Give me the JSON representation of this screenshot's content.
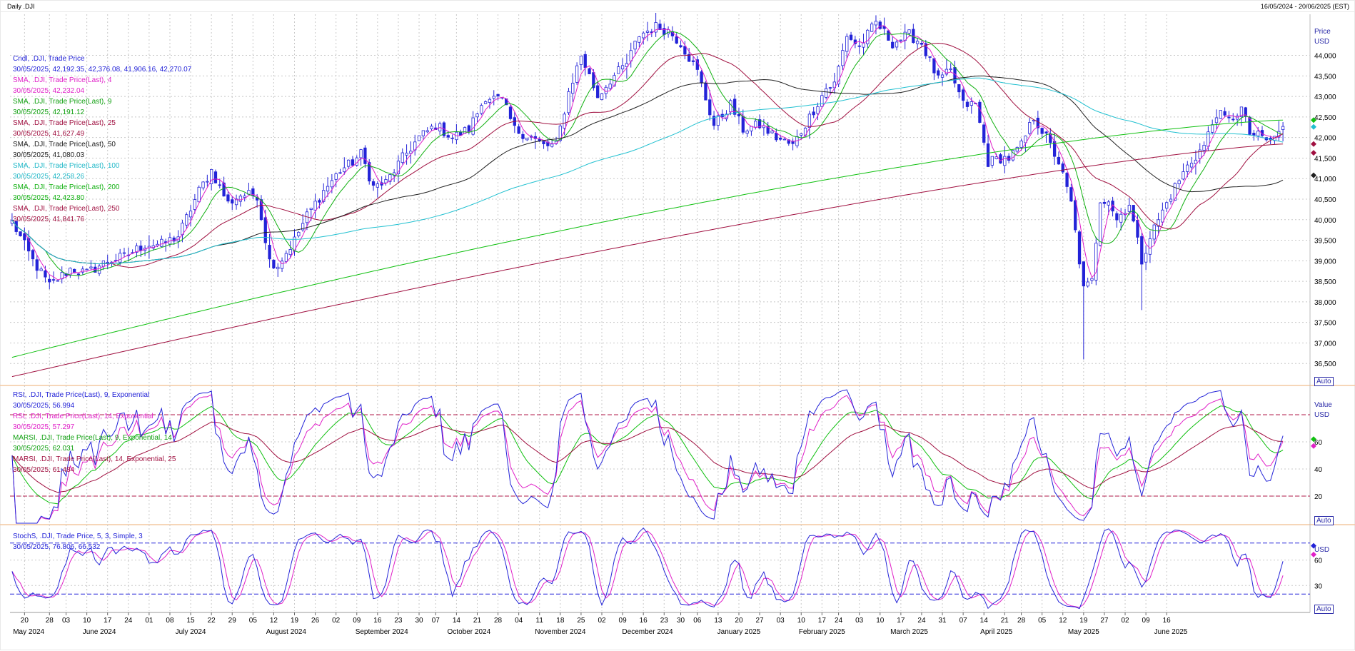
{
  "header": {
    "left": "Daily .DJI",
    "right": "16/05/2024 - 20/06/2025 (EST)"
  },
  "colors": {
    "up": "#ffffff",
    "down": "#2323d8",
    "outline": "#2323d8",
    "sma4": "#e020c8",
    "sma9": "#10b010",
    "sma25": "#a01040",
    "sma50": "#202020",
    "sma100": "#20c0d0",
    "sma200": "#10c010",
    "sma250": "#a01040",
    "rsi9": "#2323d8",
    "rsi14": "#e020c8",
    "marsi9": "#10c010",
    "marsi14": "#a01040",
    "stochK": "#2323d8",
    "stochD": "#e020c8",
    "grid": "#c8c8c8",
    "axis": "#2a2aa8",
    "divider": "#f4c8a0"
  },
  "legend_price": [
    {
      "text": "Cndl, .DJI, Trade Price",
      "color": "#2323d8"
    },
    {
      "text": "30/05/2025, 42,192.35, 42,376.08, 41,906.16, 42,270.07",
      "color": "#2323d8"
    },
    {
      "text": "SMA, .DJI, Trade Price(Last), 4",
      "color": "#e020c8"
    },
    {
      "text": "30/05/2025, 42,232.04",
      "color": "#e020c8"
    },
    {
      "text": "SMA, .DJI, Trade Price(Last), 9",
      "color": "#10a010"
    },
    {
      "text": "30/05/2025, 42,191.12",
      "color": "#10a010"
    },
    {
      "text": "SMA, .DJI, Trade Price(Last), 25",
      "color": "#a01040"
    },
    {
      "text": "30/05/2025, 41,627.49",
      "color": "#a01040"
    },
    {
      "text": "SMA, .DJI, Trade Price(Last), 50",
      "color": "#202020"
    },
    {
      "text": "30/05/2025, 41,080.03",
      "color": "#202020"
    },
    {
      "text": "SMA, .DJI, Trade Price(Last), 100",
      "color": "#20b8c8"
    },
    {
      "text": "30/05/2025, 42,258.26",
      "color": "#20b8c8"
    },
    {
      "text": "SMA, .DJI, Trade Price(Last), 200",
      "color": "#10b010"
    },
    {
      "text": "30/05/2025, 42,423.80",
      "color": "#10b010"
    },
    {
      "text": "SMA, .DJI, Trade Price(Last), 250",
      "color": "#a01040"
    },
    {
      "text": "30/05/2025, 41,841.76",
      "color": "#a01040"
    }
  ],
  "legend_rsi": [
    {
      "text": "RSI, .DJI, Trade Price(Last), 9, Exponential",
      "color": "#2323d8"
    },
    {
      "text": "30/05/2025, 56.994",
      "color": "#2323d8"
    },
    {
      "text": "RSI, .DJI, Trade Price(Last), 14, Exponential",
      "color": "#e020c8"
    },
    {
      "text": "30/05/2025, 57.297",
      "color": "#e020c8"
    },
    {
      "text": "MARSI, .DJI, Trade Price(Last), 9, Exponential, 14",
      "color": "#10a010"
    },
    {
      "text": "30/05/2025, 62.031",
      "color": "#10a010"
    },
    {
      "text": "MARSI, .DJI, Trade Price(Last), 14, Exponential, 25",
      "color": "#a01040"
    },
    {
      "text": "30/05/2025, 61.484",
      "color": "#a01040"
    }
  ],
  "legend_stoch": [
    {
      "text": "StochS, .DJI, Trade Price, 5, 3, Simple, 3",
      "color": "#2323d8"
    },
    {
      "text": "30/05/2025, 76.806, 66.532",
      "color": "#2323d8"
    }
  ],
  "axes": {
    "price_title": [
      "Price",
      "USD"
    ],
    "value_title": [
      "Value",
      "USD"
    ],
    "auto_label": "Auto"
  },
  "chart_data": {
    "type": "candlestick",
    "price_panel": {
      "ylim": [
        36000,
        45000
      ],
      "yticks": [
        "36,500",
        "37,000",
        "37,500",
        "38,000",
        "38,500",
        "39,000",
        "39,500",
        "40,000",
        "40,500",
        "41,000",
        "41,500",
        "42,000",
        "42,500",
        "43,000",
        "43,500",
        "44,000"
      ],
      "yticks_values": [
        36500,
        37000,
        37500,
        38000,
        38500,
        39000,
        39500,
        40000,
        40500,
        41000,
        41500,
        42000,
        42500,
        43000,
        43500,
        44000
      ],
      "close_anchors": [
        [
          0,
          39950
        ],
        [
          5,
          39000
        ],
        [
          9,
          38400
        ],
        [
          14,
          38800
        ],
        [
          18,
          38700
        ],
        [
          23,
          39000
        ],
        [
          27,
          39100
        ],
        [
          32,
          39400
        ],
        [
          36,
          39400
        ],
        [
          40,
          39600
        ],
        [
          45,
          40700
        ],
        [
          48,
          41200
        ],
        [
          52,
          40400
        ],
        [
          55,
          40600
        ],
        [
          59,
          40600
        ],
        [
          62,
          39000
        ],
        [
          64,
          38900
        ],
        [
          68,
          39500
        ],
        [
          71,
          40100
        ],
        [
          75,
          40700
        ],
        [
          79,
          41200
        ],
        [
          82,
          41400
        ],
        [
          84,
          41600
        ],
        [
          87,
          40800
        ],
        [
          90,
          40900
        ],
        [
          94,
          41500
        ],
        [
          98,
          42000
        ],
        [
          102,
          42300
        ],
        [
          106,
          42000
        ],
        [
          110,
          42200
        ],
        [
          114,
          43000
        ],
        [
          118,
          42900
        ],
        [
          121,
          42200
        ],
        [
          125,
          42000
        ],
        [
          128,
          41800
        ],
        [
          131,
          41800
        ],
        [
          134,
          43100
        ],
        [
          137,
          44000
        ],
        [
          141,
          43000
        ],
        [
          144,
          43400
        ],
        [
          148,
          43800
        ],
        [
          151,
          44500
        ],
        [
          155,
          44700
        ],
        [
          158,
          44600
        ],
        [
          161,
          44300
        ],
        [
          165,
          43600
        ],
        [
          169,
          42300
        ],
        [
          173,
          42800
        ],
        [
          176,
          42200
        ],
        [
          180,
          42300
        ],
        [
          184,
          42000
        ],
        [
          188,
          41800
        ],
        [
          192,
          42500
        ],
        [
          196,
          43200
        ],
        [
          198,
          43300
        ],
        [
          201,
          44500
        ],
        [
          204,
          44200
        ],
        [
          208,
          44800
        ],
        [
          212,
          44300
        ],
        [
          216,
          44500
        ],
        [
          219,
          44300
        ],
        [
          223,
          43400
        ],
        [
          226,
          43600
        ],
        [
          229,
          42800
        ],
        [
          232,
          42800
        ],
        [
          235,
          41400
        ],
        [
          238,
          41500
        ],
        [
          240,
          41500
        ],
        [
          243,
          41800
        ],
        [
          246,
          42500
        ],
        [
          249,
          42000
        ],
        [
          252,
          41400
        ],
        [
          255,
          40400
        ],
        [
          258,
          38300
        ],
        [
          260,
          38500
        ],
        [
          262,
          40500
        ],
        [
          264,
          40500
        ],
        [
          266,
          40000
        ],
        [
          269,
          40400
        ],
        [
          272,
          39000
        ],
        [
          274,
          39600
        ],
        [
          277,
          40200
        ],
        [
          280,
          40800
        ],
        [
          283,
          41300
        ],
        [
          287,
          41800
        ],
        [
          290,
          42600
        ],
        [
          293,
          42400
        ],
        [
          296,
          42700
        ],
        [
          298,
          42100
        ],
        [
          301,
          42000
        ],
        [
          303,
          41900
        ],
        [
          306,
          42270
        ]
      ],
      "n_candles": 307,
      "last_candle": {
        "date": "30/05/2025",
        "open": 42192.35,
        "high": 42376.08,
        "low": 41906.16,
        "close": 42270.07
      },
      "sma_last": {
        "sma4": 42232.04,
        "sma9": 42191.12,
        "sma25": 41627.49,
        "sma50": 41080.03,
        "sma100": 42258.26,
        "sma200": 42423.8,
        "sma250": 41841.76
      }
    },
    "rsi_panel": {
      "ylim": [
        0,
        100
      ],
      "yticks": [
        "20",
        "40",
        "60"
      ],
      "yticks_values": [
        20,
        40,
        60
      ],
      "bands": [
        20,
        80
      ],
      "last": {
        "rsi9": 56.994,
        "rsi14": 57.297,
        "marsi9": 62.031,
        "marsi14": 61.484
      }
    },
    "stoch_panel": {
      "ylim": [
        0,
        100
      ],
      "yticks": [
        "30",
        "60"
      ],
      "yticks_values": [
        30,
        60
      ],
      "bands": [
        20,
        80
      ],
      "last": {
        "k": 76.806,
        "d": 66.532
      }
    },
    "x_ticks": [
      {
        "i": 3,
        "label": "20"
      },
      {
        "i": 9,
        "label": "28"
      },
      {
        "i": 13,
        "label": "03"
      },
      {
        "i": 18,
        "label": "10"
      },
      {
        "i": 23,
        "label": "17"
      },
      {
        "i": 28,
        "label": "24"
      },
      {
        "i": 33,
        "label": "01"
      },
      {
        "i": 38,
        "label": "08"
      },
      {
        "i": 43,
        "label": "15"
      },
      {
        "i": 48,
        "label": "22"
      },
      {
        "i": 53,
        "label": "29"
      },
      {
        "i": 58,
        "label": "05"
      },
      {
        "i": 63,
        "label": "12"
      },
      {
        "i": 68,
        "label": "19"
      },
      {
        "i": 73,
        "label": "26"
      },
      {
        "i": 78,
        "label": "02"
      },
      {
        "i": 83,
        "label": "09"
      },
      {
        "i": 88,
        "label": "16"
      },
      {
        "i": 93,
        "label": "23"
      },
      {
        "i": 98,
        "label": "30"
      },
      {
        "i": 102,
        "label": "07"
      },
      {
        "i": 107,
        "label": "14"
      },
      {
        "i": 112,
        "label": "21"
      },
      {
        "i": 117,
        "label": "28"
      },
      {
        "i": 122,
        "label": "04"
      },
      {
        "i": 127,
        "label": "11"
      },
      {
        "i": 132,
        "label": "18"
      },
      {
        "i": 137,
        "label": "25"
      },
      {
        "i": 142,
        "label": "02"
      },
      {
        "i": 147,
        "label": "09"
      },
      {
        "i": 152,
        "label": "16"
      },
      {
        "i": 157,
        "label": "23"
      },
      {
        "i": 161,
        "label": "30"
      },
      {
        "i": 165,
        "label": "06"
      },
      {
        "i": 170,
        "label": "13"
      },
      {
        "i": 175,
        "label": "20"
      },
      {
        "i": 180,
        "label": "27"
      },
      {
        "i": 185,
        "label": "03"
      },
      {
        "i": 190,
        "label": "10"
      },
      {
        "i": 195,
        "label": "17"
      },
      {
        "i": 199,
        "label": "24"
      },
      {
        "i": 204,
        "label": "03"
      },
      {
        "i": 209,
        "label": "10"
      },
      {
        "i": 214,
        "label": "17"
      },
      {
        "i": 219,
        "label": "24"
      },
      {
        "i": 224,
        "label": "31"
      },
      {
        "i": 229,
        "label": "07"
      },
      {
        "i": 234,
        "label": "14"
      },
      {
        "i": 239,
        "label": "21"
      },
      {
        "i": 243,
        "label": "28"
      },
      {
        "i": 248,
        "label": "05"
      },
      {
        "i": 253,
        "label": "12"
      },
      {
        "i": 258,
        "label": "19"
      },
      {
        "i": 263,
        "label": "27"
      },
      {
        "i": 268,
        "label": "02"
      },
      {
        "i": 273,
        "label": "09"
      },
      {
        "i": 278,
        "label": "16"
      }
    ],
    "x_months": [
      {
        "i": 4,
        "label": "May 2024"
      },
      {
        "i": 21,
        "label": "June 2024"
      },
      {
        "i": 43,
        "label": "July 2024"
      },
      {
        "i": 66,
        "label": "August 2024"
      },
      {
        "i": 89,
        "label": "September 2024"
      },
      {
        "i": 110,
        "label": "October 2024"
      },
      {
        "i": 132,
        "label": "November 2024"
      },
      {
        "i": 153,
        "label": "December 2024"
      },
      {
        "i": 175,
        "label": "January 2025"
      },
      {
        "i": 195,
        "label": "February 2025"
      },
      {
        "i": 216,
        "label": "March 2025"
      },
      {
        "i": 237,
        "label": "April 2025"
      },
      {
        "i": 258,
        "label": "May 2025"
      },
      {
        "i": 279,
        "label": "June 2025"
      }
    ]
  }
}
